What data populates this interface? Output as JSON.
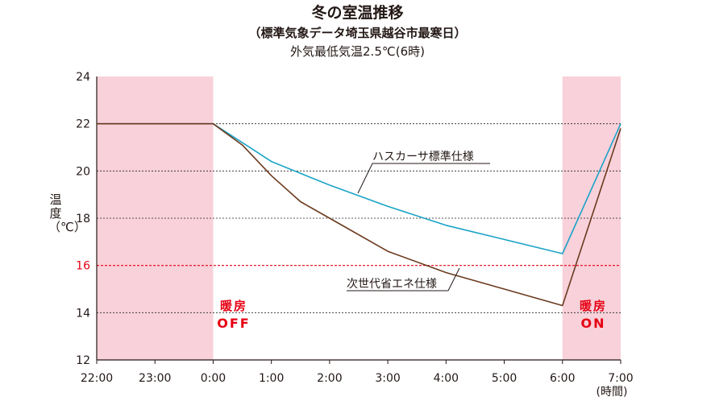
{
  "title": "冬の室温推移",
  "subtitle": "（標準気象データ埼玉県越谷市最寒日）",
  "note": "外気最低気温2.5℃(6時)",
  "colors": {
    "heating_band": "#f8d1da",
    "husscar": "#1aa3c7",
    "next_gen": "#6b3a1e",
    "threshold": "#e60012",
    "grid": "#222222",
    "heating_text": "#e60012"
  },
  "heating_off": {
    "label": "暖房",
    "state": "OFF"
  },
  "heating_on": {
    "label": "暖房",
    "state": "ON"
  },
  "chart_data": {
    "type": "line",
    "ylabel": "温度（℃）",
    "xlabel": "(時間)",
    "ylim": [
      12,
      24
    ],
    "yticks": [
      12,
      14,
      16,
      18,
      20,
      22,
      24
    ],
    "xticks": [
      "22:00",
      "23:00",
      "0:00",
      "1:00",
      "2:00",
      "3:00",
      "4:00",
      "5:00",
      "6:00",
      "7:00"
    ],
    "grid": "horizontal dotted",
    "threshold": {
      "value": 16,
      "style": "dashed red"
    },
    "heating_off_bands": [
      [
        "22:00",
        "0:00"
      ],
      [
        "6:00",
        "7:00"
      ]
    ],
    "series": [
      {
        "name": "ハスカーサ標準仕様",
        "x": [
          "22:00",
          "23:00",
          "0:00",
          "0:30",
          "1:00",
          "2:00",
          "3:00",
          "4:00",
          "5:00",
          "6:00",
          "7:00"
        ],
        "values": [
          22.0,
          22.0,
          22.0,
          21.2,
          20.4,
          19.4,
          18.5,
          17.7,
          17.1,
          16.5,
          22.0
        ]
      },
      {
        "name": "次世代省エネ仕様",
        "x": [
          "22:00",
          "23:00",
          "0:00",
          "0:30",
          "1:00",
          "1:30",
          "2:00",
          "3:00",
          "4:00",
          "5:00",
          "6:00",
          "7:00"
        ],
        "values": [
          22.0,
          22.0,
          22.0,
          21.1,
          19.8,
          18.7,
          18.0,
          16.6,
          15.7,
          15.0,
          14.3,
          21.8
        ]
      }
    ]
  }
}
